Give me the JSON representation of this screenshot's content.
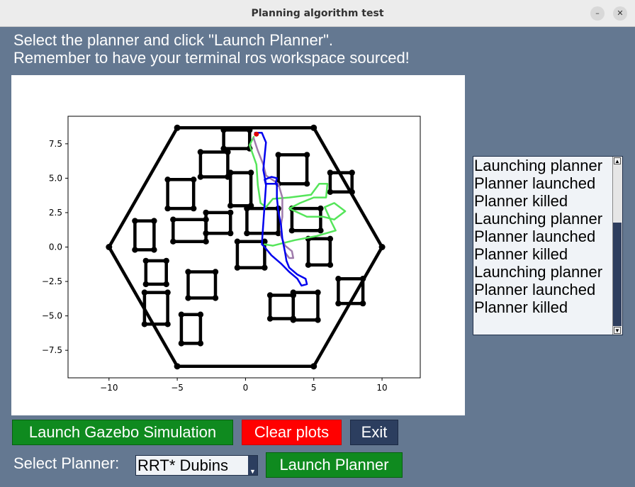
{
  "window": {
    "title": "Planning algorithm test",
    "minimize_glyph": "–",
    "close_glyph": "✕"
  },
  "instructions": {
    "line1": "Select the planner and click \"Launch Planner\".",
    "line2": "Remember to have your terminal ros workspace sourced!"
  },
  "chart_data": {
    "type": "line",
    "title": "",
    "xlabel": "",
    "ylabel": "",
    "xlim": [
      -13,
      12.8
    ],
    "ylim": [
      -9.5,
      9.5
    ],
    "xticks": [
      -10,
      -5,
      0,
      5,
      10
    ],
    "yticks": [
      -7.5,
      -5.0,
      -2.5,
      0.0,
      2.5,
      5.0,
      7.5
    ],
    "grid": false,
    "series": [
      {
        "role": "map-boundary",
        "color": "#000000",
        "closed": true,
        "points": [
          [
            -10,
            0
          ],
          [
            -5,
            8.66
          ],
          [
            5,
            8.66
          ],
          [
            10,
            0
          ],
          [
            5,
            -8.66
          ],
          [
            -5,
            -8.66
          ]
        ]
      },
      {
        "role": "obstacles",
        "color": "#000000",
        "rectangles": [
          [
            -1.6,
            7.15,
            0.3,
            8.5
          ],
          [
            -3.3,
            5.1,
            -1.3,
            6.9
          ],
          [
            -5.7,
            2.8,
            -3.8,
            4.9
          ],
          [
            -1.1,
            3.0,
            0.4,
            5.4
          ],
          [
            2.4,
            4.6,
            4.5,
            6.7
          ],
          [
            6.2,
            4.0,
            7.8,
            5.4
          ],
          [
            -8.1,
            -0.2,
            -6.7,
            1.9
          ],
          [
            -5.3,
            0.4,
            -2.9,
            2.0
          ],
          [
            -2.9,
            1.0,
            -1.1,
            2.5
          ],
          [
            0.1,
            1.0,
            2.4,
            2.8
          ],
          [
            3.4,
            1.2,
            5.5,
            2.8
          ],
          [
            -0.6,
            -1.5,
            1.4,
            0.4
          ],
          [
            4.6,
            -1.3,
            6.2,
            0.6
          ],
          [
            -7.3,
            -2.7,
            -5.8,
            -1.0
          ],
          [
            -4.2,
            -3.7,
            -2.2,
            -1.8
          ],
          [
            -7.4,
            -5.6,
            -5.7,
            -3.3
          ],
          [
            -4.7,
            -7.0,
            -3.3,
            -4.9
          ],
          [
            1.8,
            -5.2,
            3.5,
            -3.5
          ],
          [
            3.5,
            -5.3,
            5.3,
            -3.3
          ],
          [
            6.8,
            -4.1,
            8.6,
            -2.3
          ]
        ]
      },
      {
        "role": "path-green",
        "color": "#55e55a",
        "points": [
          [
            0.6,
            8.0
          ],
          [
            0.3,
            7.4
          ],
          [
            0.8,
            6.0
          ],
          [
            0.9,
            4.5
          ],
          [
            1.1,
            3.2
          ],
          [
            1.5,
            2.9
          ],
          [
            2.0,
            3.5
          ],
          [
            3.2,
            3.6
          ],
          [
            4.8,
            3.8
          ],
          [
            5.4,
            4.6
          ],
          [
            6.0,
            4.6
          ],
          [
            5.9,
            3.6
          ],
          [
            5.0,
            3.6
          ],
          [
            4.0,
            3.2
          ],
          [
            3.2,
            2.8
          ],
          [
            4.5,
            2.2
          ],
          [
            5.7,
            2.2
          ],
          [
            6.5,
            2.0
          ],
          [
            7.3,
            2.6
          ],
          [
            6.5,
            3.2
          ],
          [
            5.8,
            2.9
          ],
          [
            6.3,
            1.8
          ],
          [
            6.6,
            1.2
          ],
          [
            5.2,
            0.8
          ],
          [
            3.6,
            0.5
          ],
          [
            2.0,
            0.1
          ],
          [
            1.4,
            0.2
          ]
        ]
      },
      {
        "role": "path-purple",
        "color": "#9f7bab",
        "points": [
          [
            0.6,
            7.9
          ],
          [
            0.9,
            7.0
          ],
          [
            1.3,
            6.0
          ],
          [
            1.5,
            5.2
          ],
          [
            2.4,
            4.6
          ],
          [
            2.7,
            3.6
          ],
          [
            2.7,
            2.2
          ],
          [
            2.6,
            1.6
          ],
          [
            2.6,
            0.8
          ],
          [
            2.9,
            0.1
          ],
          [
            3.4,
            -0.3
          ],
          [
            3.5,
            -0.8
          ],
          [
            3.2,
            -0.8
          ],
          [
            2.9,
            -0.4
          ]
        ]
      },
      {
        "role": "path-blue",
        "color": "#0000ee",
        "points": [
          [
            0.7,
            8.3
          ],
          [
            1.2,
            8.3
          ],
          [
            1.5,
            7.6
          ],
          [
            1.4,
            6.6
          ],
          [
            1.3,
            5.6
          ],
          [
            1.5,
            4.6
          ],
          [
            2.3,
            4.6
          ],
          [
            2.3,
            3.6
          ],
          [
            2.4,
            2.6
          ],
          [
            2.6,
            1.6
          ],
          [
            2.7,
            0.6
          ],
          [
            2.9,
            -0.4
          ],
          [
            3.0,
            -1.0
          ],
          [
            3.2,
            -1.5
          ],
          [
            3.8,
            -2.0
          ],
          [
            4.4,
            -2.3
          ],
          [
            4.5,
            -2.7
          ],
          [
            4.1,
            -2.8
          ],
          [
            3.8,
            -2.3
          ],
          [
            3.2,
            -1.8
          ],
          [
            2.6,
            -1.2
          ],
          [
            1.9,
            -0.6
          ],
          [
            1.4,
            0.0
          ],
          [
            1.2,
            0.2
          ],
          [
            1.5,
            4.5
          ],
          [
            1.4,
            4.9
          ],
          [
            1.9,
            5.1
          ],
          [
            2.3,
            5.0
          ],
          [
            2.2,
            4.6
          ]
        ]
      },
      {
        "role": "start-marker",
        "color": "#dd0000",
        "points": [
          [
            0.8,
            8.2
          ]
        ]
      }
    ]
  },
  "log": {
    "items": [
      "Launching planner",
      "Planner launched",
      "Planner killed",
      "Launching planner",
      "Planner launched",
      "Planner killed",
      "Launching planner",
      "Planner launched",
      "Planner killed"
    ],
    "scroll_up_glyph": "▲",
    "scroll_down_glyph": "▼"
  },
  "buttons": {
    "launch_gazebo": "Launch Gazebo Simulation",
    "clear_plots": "Clear plots",
    "exit": "Exit",
    "launch_planner": "Launch Planner"
  },
  "planner_select": {
    "label": "Select Planner:",
    "value": "RRT* Dubins",
    "arrow_glyph": "▼"
  },
  "colors": {
    "background": "#647891",
    "green_button": "#0f8a1f",
    "red_button": "#ff0000",
    "navy_button": "#2c3e5f"
  }
}
